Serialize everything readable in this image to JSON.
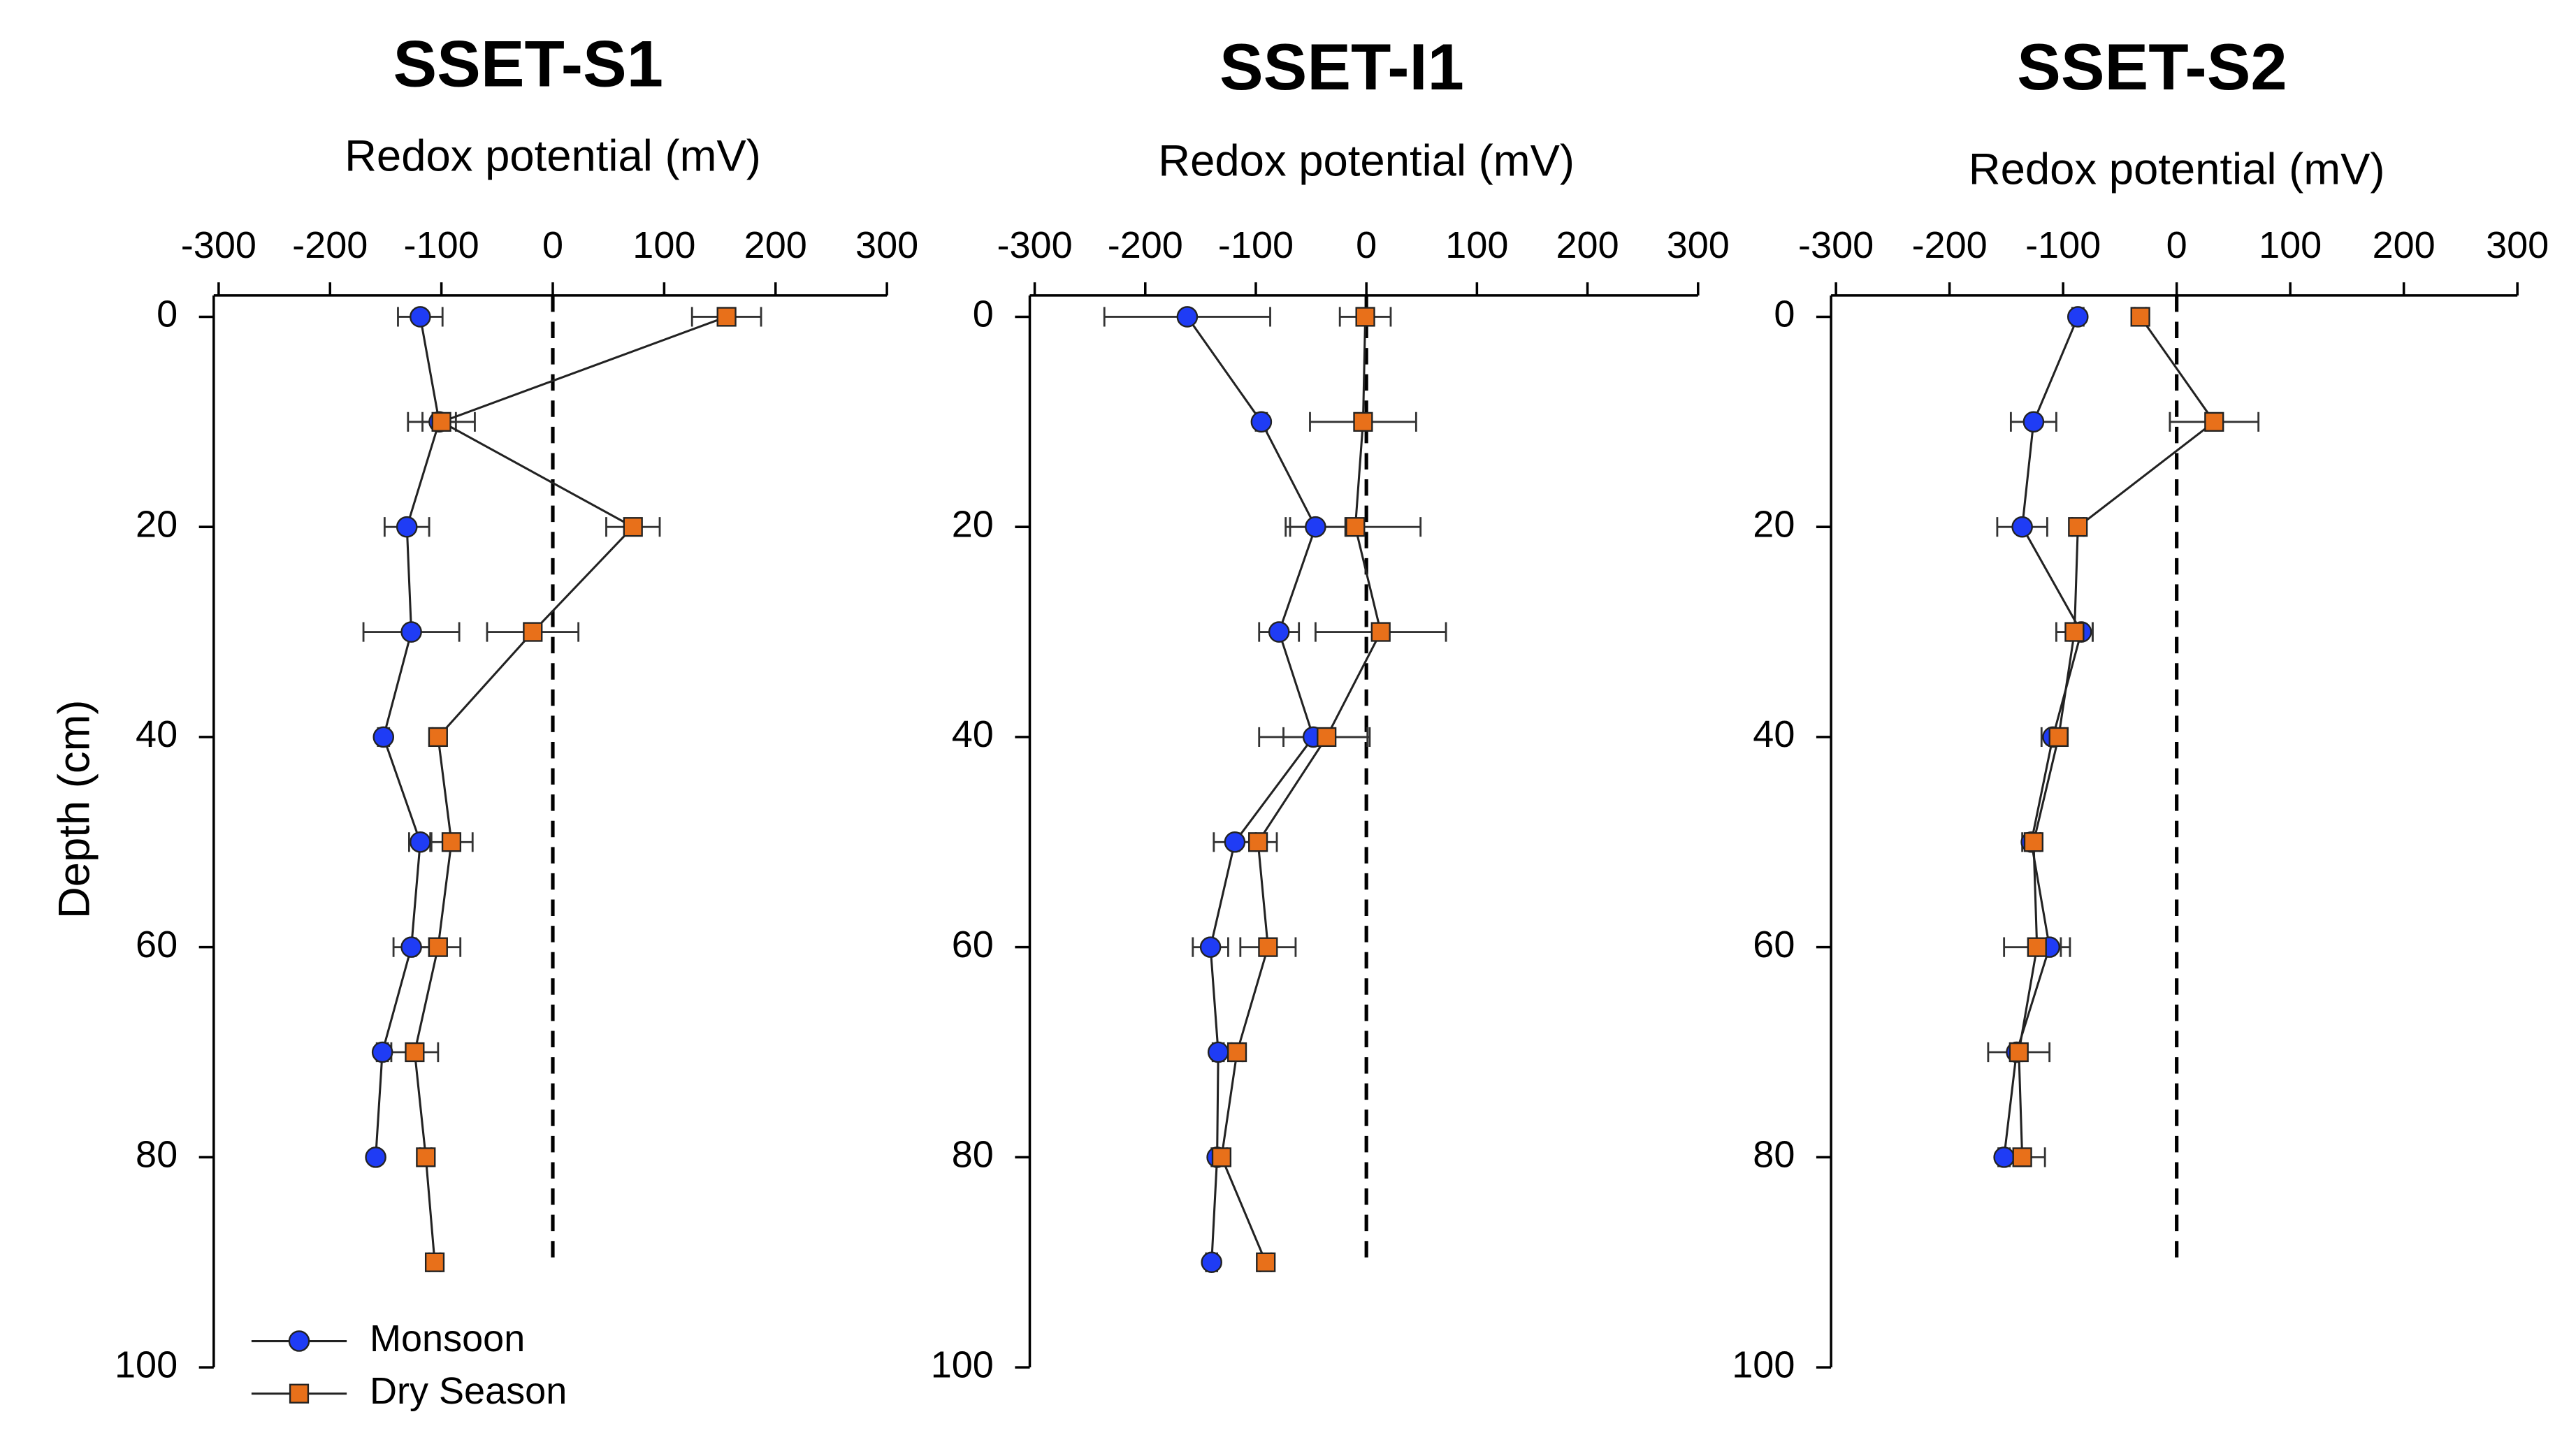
{
  "chart_data": [
    {
      "type": "line",
      "title": "SSET-S1",
      "xlabel": "Redox potential (mV)",
      "ylabel": "Depth (cm)",
      "xlim": [
        -300,
        300
      ],
      "xticks": [
        -300,
        -200,
        -100,
        0,
        100,
        200,
        300
      ],
      "ylim": [
        100,
        0
      ],
      "yticks": [
        0,
        20,
        40,
        60,
        80,
        100
      ],
      "zero_line": true,
      "legend": "lower left",
      "series": [
        {
          "name": "Monsoon",
          "color": "#1f3cf5",
          "marker": "circle",
          "y": [
            0,
            10,
            20,
            30,
            40,
            50,
            60,
            70,
            80
          ],
          "x": [
            -119,
            -102,
            -131,
            -127,
            -152,
            -119,
            -127,
            -153,
            -159
          ],
          "xerr": [
            20,
            15,
            20,
            43,
            5,
            10,
            16,
            5,
            3
          ]
        },
        {
          "name": "Dry Season",
          "color": "#e8701a",
          "marker": "square",
          "y": [
            0,
            10,
            20,
            30,
            40,
            50,
            60,
            70,
            80,
            90
          ],
          "x": [
            156,
            -100,
            72,
            -18,
            -103,
            -91,
            -103,
            -124,
            -114,
            -106
          ],
          "xerr": [
            31,
            30,
            24,
            41,
            5,
            19,
            20,
            21,
            5,
            5
          ]
        }
      ]
    },
    {
      "type": "line",
      "title": "SSET-I1",
      "xlabel": "Redox potential (mV)",
      "xlim": [
        -300,
        300
      ],
      "xticks": [
        -300,
        -200,
        -100,
        0,
        100,
        200,
        300
      ],
      "ylim": [
        100,
        0
      ],
      "yticks": [
        0,
        20,
        40,
        60,
        80,
        100
      ],
      "zero_line": true,
      "series": [
        {
          "name": "Monsoon",
          "color": "#1f3cf5",
          "marker": "circle",
          "y": [
            0,
            10,
            20,
            30,
            40,
            50,
            60,
            70,
            80,
            90
          ],
          "x": [
            -162,
            -95,
            -46,
            -79,
            -48,
            -119,
            -141,
            -134,
            -135,
            -140
          ],
          "xerr": [
            75,
            5,
            27,
            18,
            49,
            19,
            16,
            5,
            5,
            5
          ]
        },
        {
          "name": "Dry Season",
          "color": "#e8701a",
          "marker": "square",
          "y": [
            0,
            10,
            20,
            30,
            40,
            50,
            60,
            70,
            80,
            90
          ],
          "x": [
            -1,
            -3,
            -10,
            13,
            -36,
            -98,
            -89,
            -117,
            -131,
            -91
          ],
          "xerr": [
            23,
            48,
            59,
            59,
            39,
            17,
            25,
            5,
            5,
            5
          ]
        }
      ]
    },
    {
      "type": "line",
      "title": "SSET-S2",
      "xlabel": "Redox potential (mV)",
      "xlim": [
        -300,
        300
      ],
      "xticks": [
        -300,
        -200,
        -100,
        0,
        100,
        200,
        300
      ],
      "ylim": [
        100,
        0
      ],
      "yticks": [
        0,
        20,
        40,
        60,
        80,
        100
      ],
      "zero_line": true,
      "series": [
        {
          "name": "Monsoon",
          "color": "#1f3cf5",
          "marker": "circle",
          "y": [
            0,
            10,
            20,
            30,
            40,
            50,
            60,
            70,
            80
          ],
          "x": [
            -87,
            -126,
            -136,
            -84,
            -109,
            -128,
            -112,
            -141,
            -152
          ],
          "xerr": [
            5,
            20,
            22,
            10,
            10,
            8,
            10,
            5,
            5
          ]
        },
        {
          "name": "Dry Season",
          "color": "#e8701a",
          "marker": "square",
          "y": [
            0,
            10,
            20,
            30,
            40,
            50,
            60,
            70,
            80
          ],
          "x": [
            -32,
            33,
            -87,
            -90,
            -104,
            -126,
            -123,
            -139,
            -136
          ],
          "xerr": [
            5,
            39,
            5,
            16,
            8,
            6,
            29,
            27,
            20
          ]
        }
      ]
    }
  ]
}
